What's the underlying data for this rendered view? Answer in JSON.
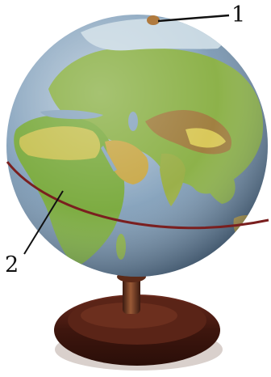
{
  "labels": {
    "callout_1": "1",
    "callout_2": "2"
  },
  "colors": {
    "ocean": "#7f9cb7",
    "land_green": "#7dac42",
    "land_yellow": "#d9c85a",
    "mountain_brown": "#a5773f",
    "equator_line": "#7a1f1f",
    "stand_wood": "#4a1f14"
  }
}
